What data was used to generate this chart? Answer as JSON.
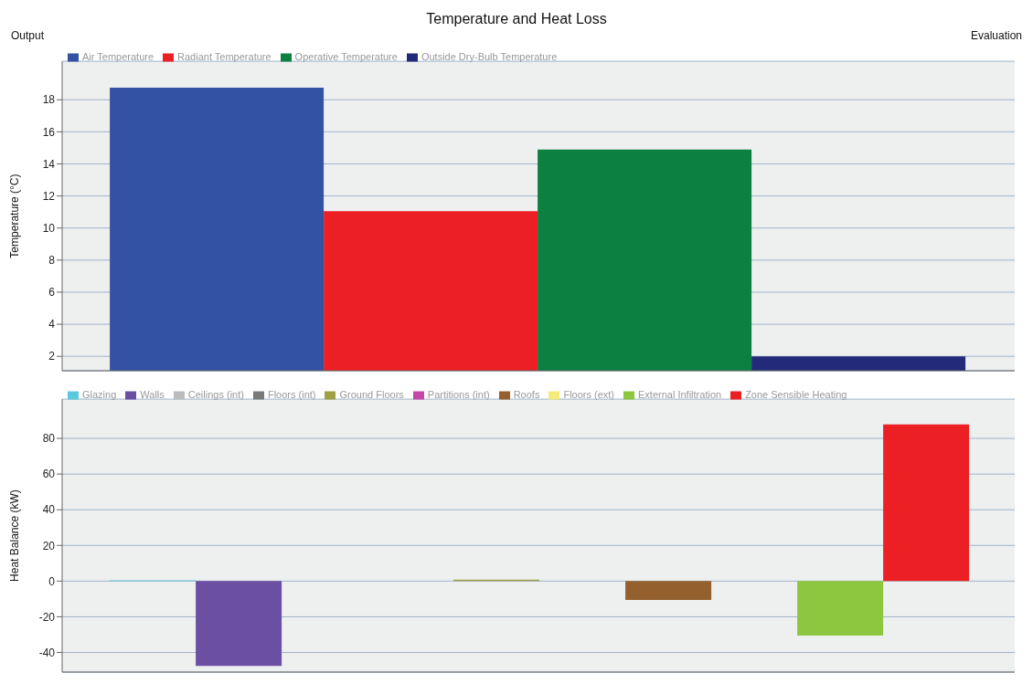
{
  "chart_data": [
    {
      "type": "bar",
      "title": "Temperature and Heat Loss",
      "annotations": [
        "Output",
        "Evaluation"
      ],
      "ylabel": "Temperature (°C)",
      "categories": [
        null
      ],
      "series": [
        {
          "name": "Air Temperature",
          "color": "#3452a4",
          "values": [
            18.75
          ]
        },
        {
          "name": "Radiant Temperature",
          "color": "#ec2024",
          "values": [
            11.05
          ]
        },
        {
          "name": "Operative Temperature",
          "color": "#0c8040",
          "values": [
            14.9
          ]
        },
        {
          "name": "Outside Dry-Bulb Temperature",
          "color": "#232a7a",
          "values": [
            2.0
          ]
        }
      ],
      "ylim": [
        1.1,
        20.4
      ],
      "yticks": [
        2,
        4,
        6,
        8,
        10,
        12,
        14,
        16,
        18
      ],
      "grid": "y",
      "legend": "top left",
      "tick_labels": "y"
    },
    {
      "type": "bar",
      "ylabel": "Heat Balance (kW)",
      "categories": [
        null
      ],
      "series": [
        {
          "name": "Glazing",
          "color": "#5bc8dc",
          "values": [
            0.5
          ]
        },
        {
          "name": "Walls",
          "color": "#6a4fa2",
          "values": [
            -47.6
          ]
        },
        {
          "name": "Ceilings (int)",
          "color": "#bcbcbc",
          "values": [
            0
          ]
        },
        {
          "name": "Floors (int)",
          "color": "#7a7a7a",
          "values": [
            0
          ]
        },
        {
          "name": "Ground Floors",
          "color": "#a0a046",
          "values": [
            0.8
          ]
        },
        {
          "name": "Partitions (int)",
          "color": "#c447a8",
          "values": [
            0
          ]
        },
        {
          "name": "Roofs",
          "color": "#93602e",
          "values": [
            -10.6
          ]
        },
        {
          "name": "Floors (ext)",
          "color": "#f4ec7a",
          "values": [
            0
          ]
        },
        {
          "name": "External Infiltration",
          "color": "#8dc63f",
          "values": [
            -30.5
          ]
        },
        {
          "name": "Zone Sensible Heating",
          "color": "#ec2024",
          "values": [
            87.9
          ]
        }
      ],
      "ylim": [
        -51,
        102
      ],
      "yticks": [
        -40,
        -20,
        0,
        20,
        40,
        60,
        80
      ],
      "grid": "y",
      "legend": "top left",
      "tick_labels": "y"
    }
  ]
}
